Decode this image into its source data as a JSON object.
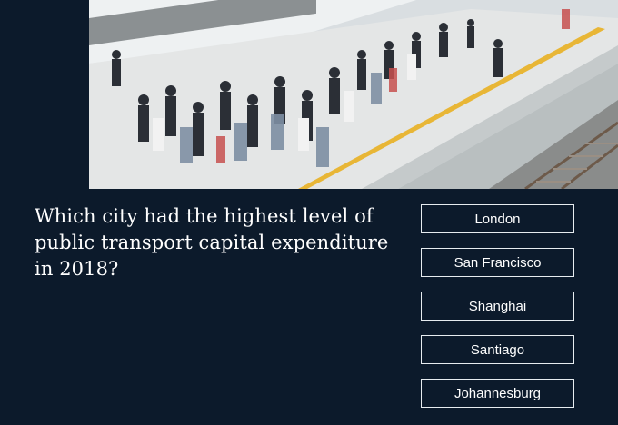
{
  "question": "Which city had the highest level of public transport capital expenditure in 2018?",
  "options": [
    "London",
    "San Francisco",
    "Shanghai",
    "Santiago",
    "Johannesburg"
  ],
  "colors": {
    "background": "#0c1a2b",
    "text": "#ffffff",
    "option_border": "#e7ecf0",
    "platform_line": "#e8b636"
  }
}
